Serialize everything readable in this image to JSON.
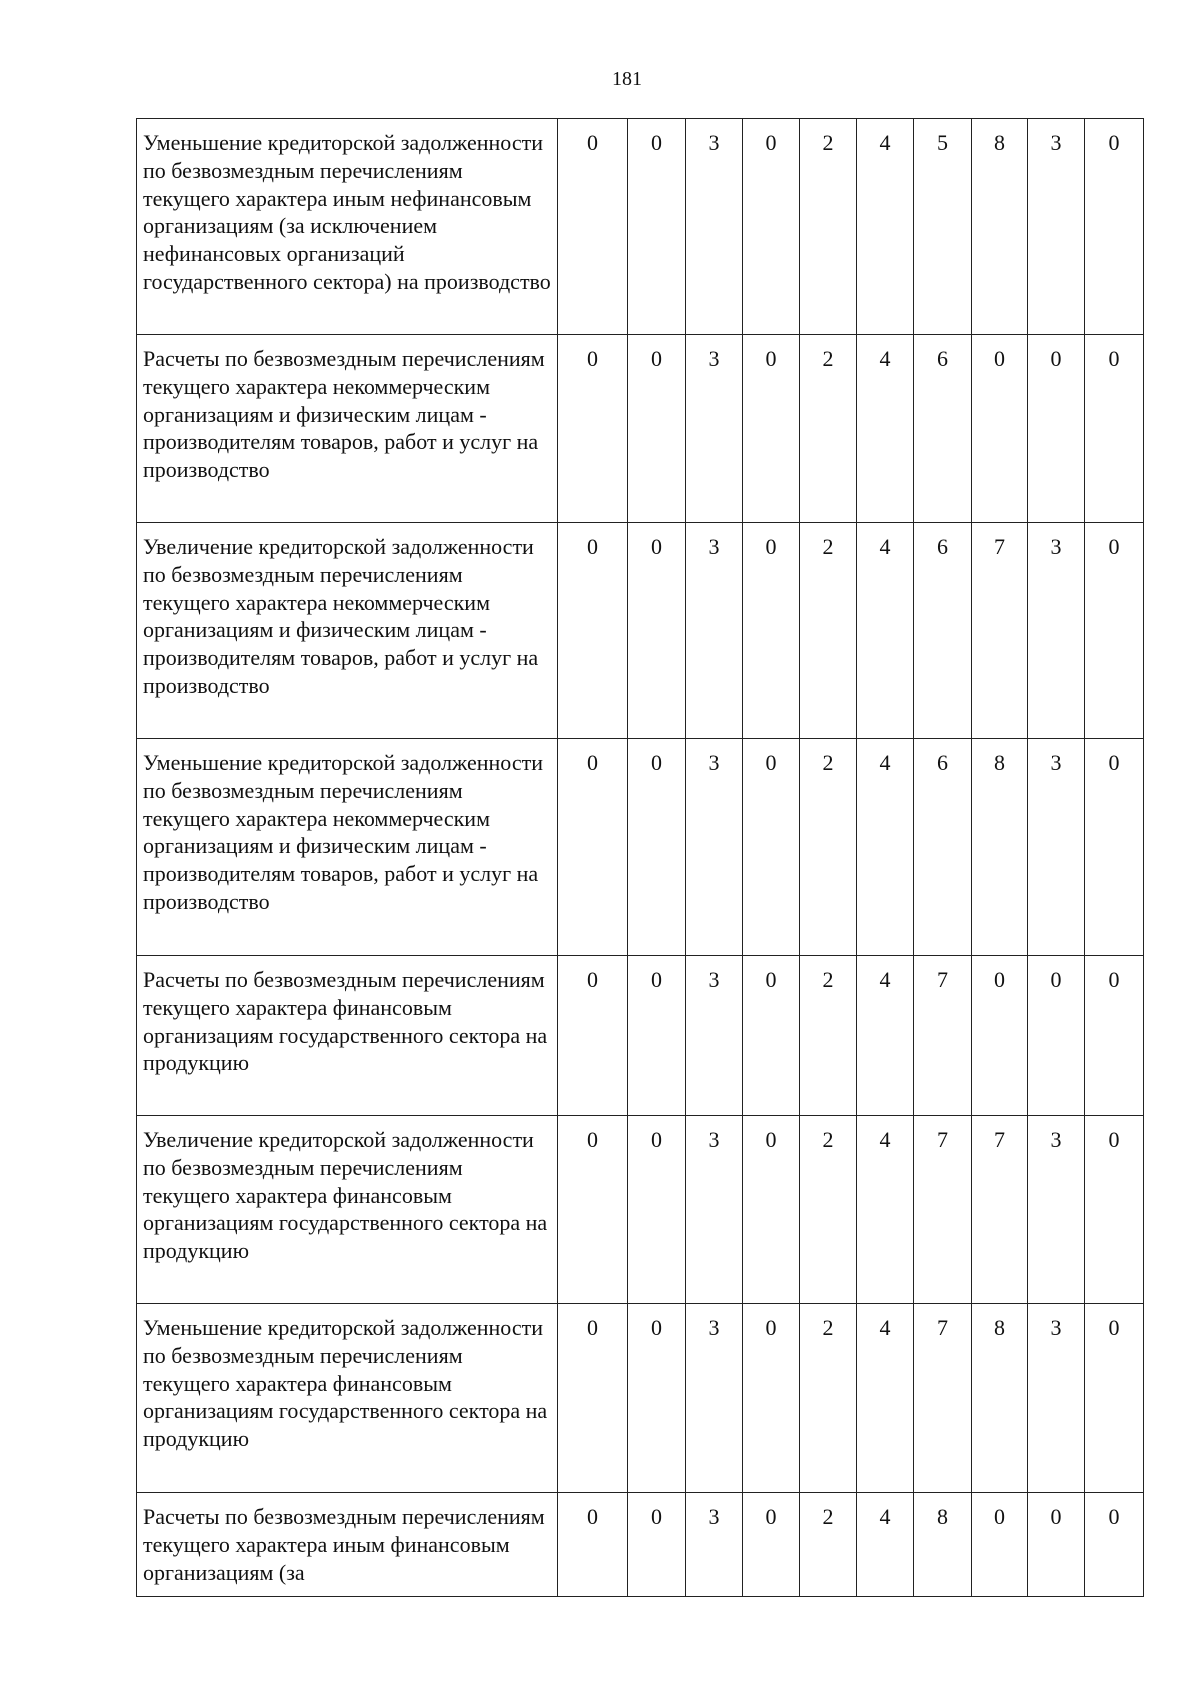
{
  "page_number": "181",
  "rows": [
    {
      "text": "Уменьшение кредиторской задолженности по безвозмездным перечислениям текущего характера иным нефинансовым организациям (за исключением нефинансовых организаций государственного сектора) на производство",
      "code": [
        "0",
        "0",
        "3",
        "0",
        "2",
        "4",
        "5",
        "8",
        "3",
        "0"
      ]
    },
    {
      "text": "Расчеты по безвозмездным перечислениям текущего характера некоммерческим организациям и физическим лицам - производителям товаров, работ и услуг на производство",
      "code": [
        "0",
        "0",
        "3",
        "0",
        "2",
        "4",
        "6",
        "0",
        "0",
        "0"
      ]
    },
    {
      "text": "Увеличение кредиторской задолженности по безвозмездным перечислениям текущего характера некоммерческим организациям и физическим лицам - производителям товаров, работ и услуг на производство",
      "code": [
        "0",
        "0",
        "3",
        "0",
        "2",
        "4",
        "6",
        "7",
        "3",
        "0"
      ]
    },
    {
      "text": "Уменьшение кредиторской задолженности по безвозмездным перечислениям текущего характера некоммерческим организациям и физическим лицам - производителям товаров, работ и услуг на производство",
      "code": [
        "0",
        "0",
        "3",
        "0",
        "2",
        "4",
        "6",
        "8",
        "3",
        "0"
      ]
    },
    {
      "text": "Расчеты по безвозмездным перечислениям текущего характера финансовым организациям государственного сектора на продукцию",
      "code": [
        "0",
        "0",
        "3",
        "0",
        "2",
        "4",
        "7",
        "0",
        "0",
        "0"
      ]
    },
    {
      "text": "Увеличение кредиторской задолженности по безвозмездным перечислениям текущего характера финансовым организациям государственного сектора на продукцию",
      "code": [
        "0",
        "0",
        "3",
        "0",
        "2",
        "4",
        "7",
        "7",
        "3",
        "0"
      ]
    },
    {
      "text": "Уменьшение кредиторской задолженности по безвозмездным перечислениям текущего характера финансовым организациям государственного сектора на продукцию",
      "code": [
        "0",
        "0",
        "3",
        "0",
        "2",
        "4",
        "7",
        "8",
        "3",
        "0"
      ]
    },
    {
      "text": "Расчеты по безвозмездным перечислениям текущего характера иным финансовым организациям (за",
      "code": [
        "0",
        "0",
        "3",
        "0",
        "2",
        "4",
        "8",
        "0",
        "0",
        "0"
      ]
    }
  ]
}
